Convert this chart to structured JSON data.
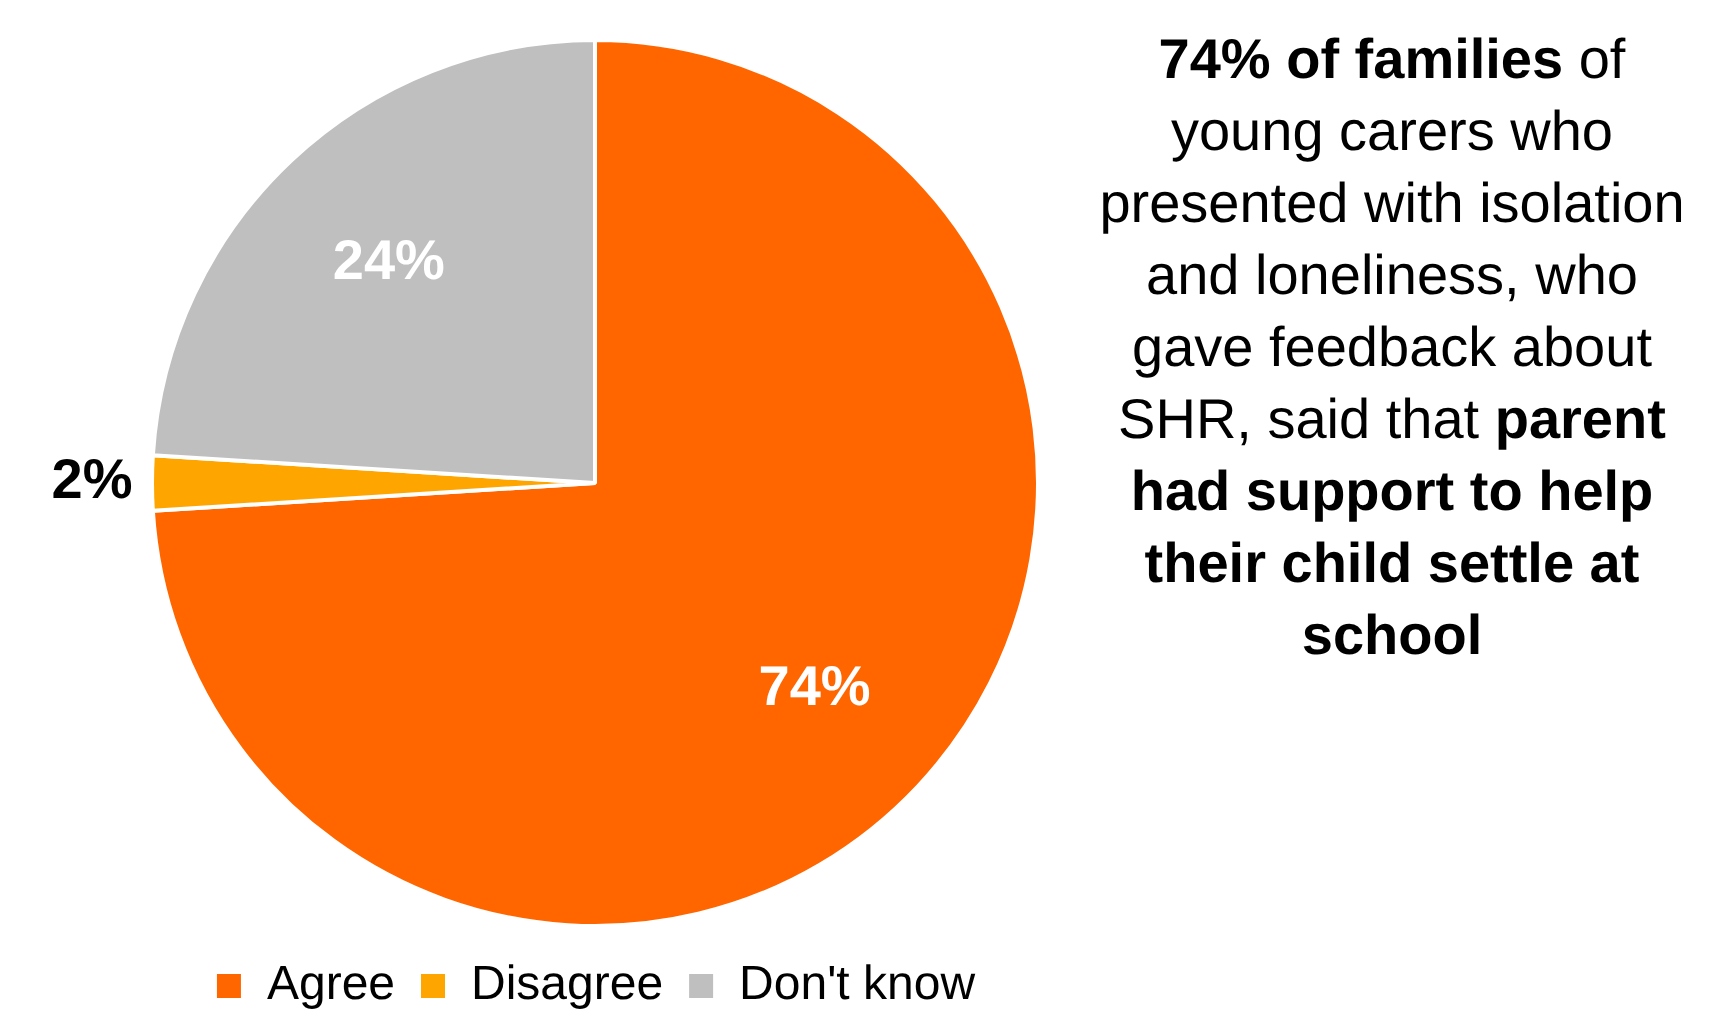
{
  "chart_data": {
    "type": "pie",
    "categories": [
      "Agree",
      "Disagree",
      "Don't know"
    ],
    "values": [
      74,
      2,
      24
    ],
    "colors": [
      "#ff6600",
      "#ffa500",
      "#bfbfbf"
    ],
    "value_labels": [
      "74%",
      "2%",
      "24%"
    ],
    "legend": "bottom",
    "annotations": [
      "74% of families",
      " of young carers who presented with isolation and loneliness, who gave feedback about SHR, said that ",
      "parent had support to help their child settle at school"
    ]
  }
}
